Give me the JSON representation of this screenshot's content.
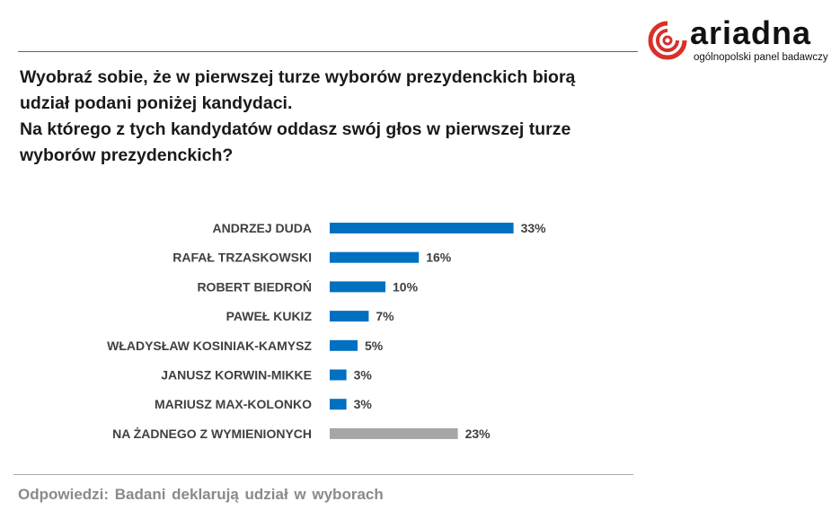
{
  "logo": {
    "word": "ariadna",
    "tagline": "ogólnopolski panel badawczy"
  },
  "title_lines": [
    "Wyobraź sobie, że w pierwszej turze wyborów prezydenckich biorą",
    "udział podani poniżej kandydaci.",
    "Na którego z tych kandydatów oddasz swój głos w pierwszej turze",
    "wyborów prezydenckich?"
  ],
  "chart_data": {
    "type": "bar",
    "orientation": "horizontal",
    "categories": [
      "ANDRZEJ  DUDA",
      "RAFAŁ  TRZASKOWSKI",
      "ROBERT  BIEDROŃ",
      "PAWEŁ  KUKIZ",
      "WŁADYSŁAW  KOSINIAK-KAMYSZ",
      "JANUSZ  KORWIN-MIKKE",
      "MARIUSZ  MAX-KOLONKO",
      "NA  ŻADNEGO  Z  WYMIENIONYCH"
    ],
    "values": [
      33,
      16,
      10,
      7,
      5,
      3,
      3,
      23
    ],
    "labels": [
      "33%",
      "16%",
      "10%",
      "7%",
      "5%",
      "3%",
      "3%",
      "23%"
    ],
    "colors": [
      "#0070c0",
      "#0070c0",
      "#0070c0",
      "#0070c0",
      "#0070c0",
      "#0070c0",
      "#0070c0",
      "#a6a6a6"
    ],
    "unit": "%",
    "xlim": [
      0,
      100
    ],
    "grid": false
  },
  "footer": "Odpowiedzi:  Badani  deklarują  udział  w wyborach"
}
